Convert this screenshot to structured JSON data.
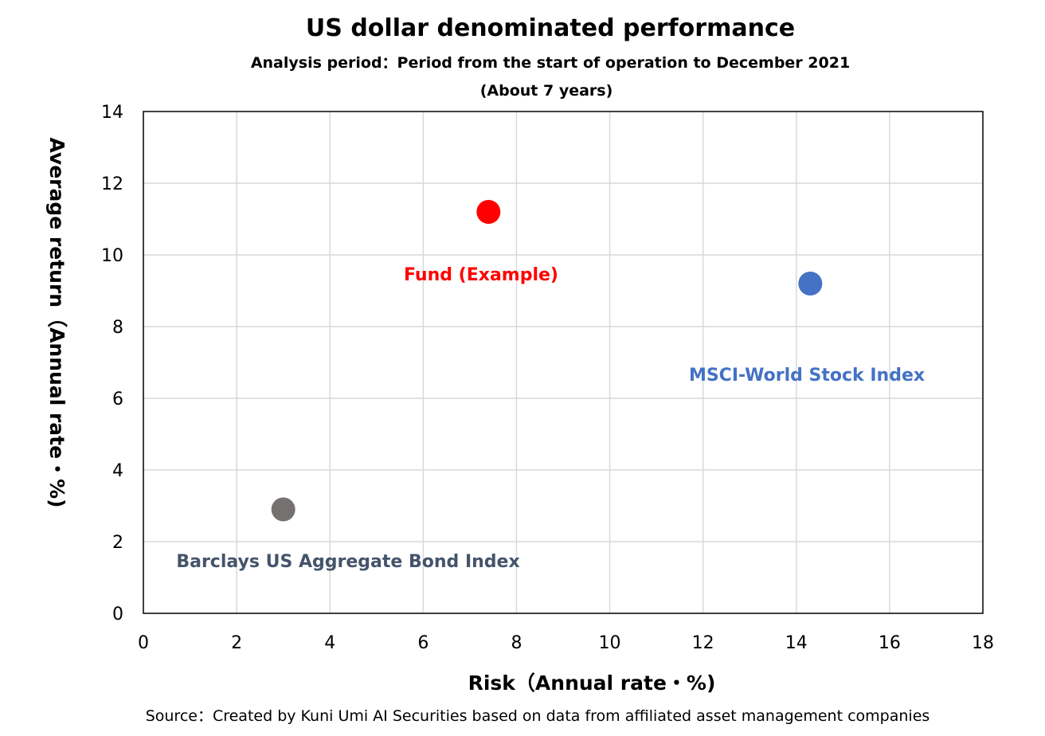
{
  "chart_data": {
    "type": "scatter",
    "title": "US dollar denominated performance",
    "subtitle_lines": [
      "Analysis period：Period from the start of operation to December 2021",
      "(About 7 years)"
    ],
    "xlabel": "Risk（Annual rate・%)",
    "ylabel": "Average return（Annual rate・%)",
    "xlim": [
      0,
      18
    ],
    "ylim": [
      0,
      14
    ],
    "x_ticks": [
      0,
      2,
      4,
      6,
      8,
      10,
      12,
      14,
      16,
      18
    ],
    "y_ticks": [
      0,
      2,
      4,
      6,
      8,
      10,
      12,
      14
    ],
    "grid": true,
    "points": [
      {
        "label": "Fund (Example)",
        "x": 7.4,
        "y": 11.2,
        "color": "#ff0000",
        "label_color": "#ff0000"
      },
      {
        "label": "MSCI-World Stock Index",
        "x": 14.3,
        "y": 9.2,
        "color": "#4472c4",
        "label_color": "#4472c4"
      },
      {
        "label": "Barclays US Aggregate Bond Index",
        "x": 3.0,
        "y": 2.9,
        "color": "#767171",
        "label_color": "#44546a"
      }
    ],
    "source": "Source：Created by Kuni Umi AI Securities based on data from affiliated asset management companies"
  }
}
